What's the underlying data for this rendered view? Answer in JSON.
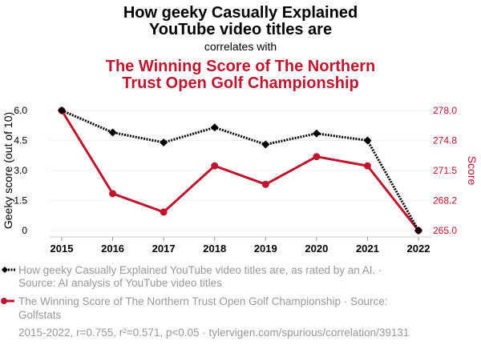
{
  "chart_data": {
    "type": "line",
    "title_line1": "How geeky Casually Explained",
    "title_line2": "YouTube video titles are",
    "connector": "correlates with",
    "subtitle_line1": "The Winning Score of The Northern",
    "subtitle_line2": "Trust Open Golf Championship",
    "x": [
      "2015",
      "2016",
      "2017",
      "2018",
      "2019",
      "2020",
      "2021",
      "2022"
    ],
    "series": [
      {
        "name": "How geeky Casually Explained YouTube video titles are",
        "axis": "left",
        "color": "#000000",
        "style": "dotted",
        "marker": "diamond",
        "values": [
          6.0,
          4.9,
          4.4,
          5.15,
          4.3,
          4.85,
          4.5,
          0
        ]
      },
      {
        "name": "The Winning Score of The Northern Trust Open Golf Championship",
        "axis": "right",
        "color": "#c0152f",
        "style": "solid",
        "marker": "circle",
        "values": [
          278,
          269,
          267,
          272,
          270,
          273,
          272,
          265
        ]
      }
    ],
    "ylabel_left": "Geeky score (out of 10)",
    "ylabel_right": "Score",
    "ylim_left": [
      0,
      6
    ],
    "ylim_right": [
      265,
      278
    ],
    "yticks_left": [
      "0",
      "1.5",
      "3.0",
      "4.5",
      "6.0"
    ],
    "yticks_right": [
      "265.0",
      "268.2",
      "271.5",
      "274.8",
      "278.0"
    ],
    "grid": true,
    "legend": [
      {
        "line1": "How geeky Casually Explained YouTube video titles are, as rated by an AI. ·",
        "line2": "Source: AI analysis of YouTube video titles"
      },
      {
        "line1": "The Winning Score of The Northern Trust Open Golf Championship · Source:",
        "line2": "Golfstats"
      }
    ],
    "footer": "2015-2022, r=0.755, r²=0.571, p<0.05 · tylervigen.com/spurious/correlation/39131"
  }
}
